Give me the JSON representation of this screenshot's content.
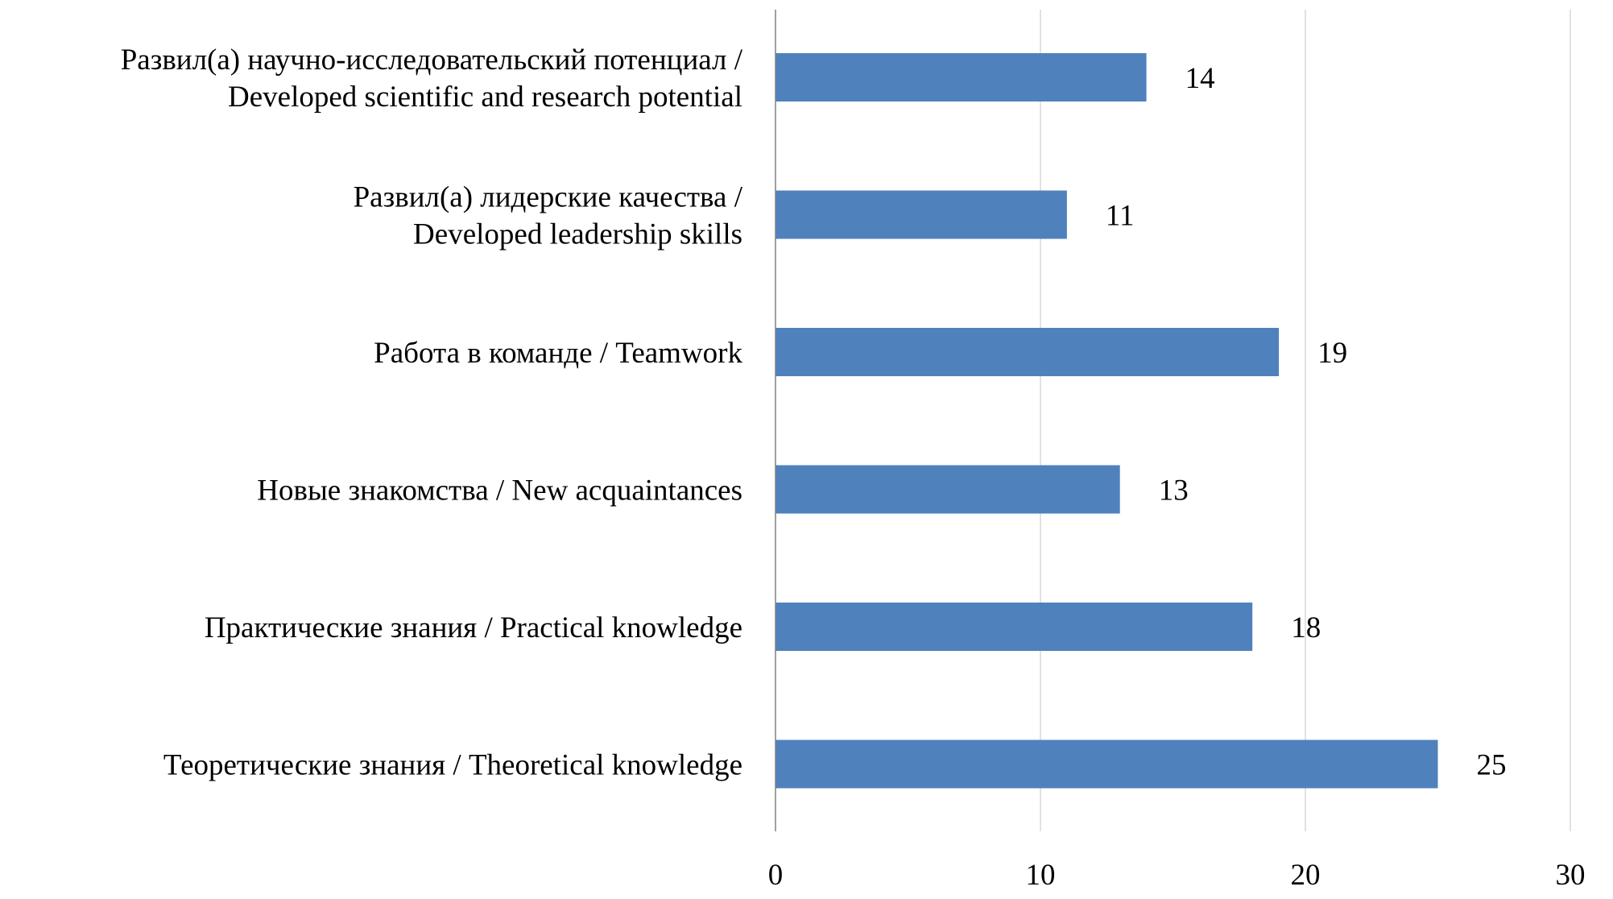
{
  "chart_data": {
    "type": "bar",
    "orientation": "horizontal",
    "title": "",
    "xlabel": "",
    "ylabel": "",
    "categories": [
      "Развил(а) научно-исследовательский потенциал / Developed scientific and research potential",
      "Развил(а) лидерские качества / Developed leadership skills",
      "Работа в команде / Teamwork",
      "Новые знакомства / New acquaintances",
      "Практические знания / Practical knowledge",
      "Теоретические знания / Theoretical knowledge"
    ],
    "category_lines": [
      [
        "Развил(а) научно-исследовательский потенциал /",
        "Developed scientific and research potential"
      ],
      [
        "Развил(а) лидерские качества /",
        "Developed leadership skills"
      ],
      [
        "Работа в команде / Teamwork"
      ],
      [
        "Новые знакомства / New acquaintances"
      ],
      [
        "Практические знания / Practical knowledge"
      ],
      [
        "Теоретические знания / Theoretical knowledge"
      ]
    ],
    "values": [
      14,
      11,
      19,
      13,
      18,
      25
    ],
    "data_labels": [
      "14",
      "11",
      "19",
      "13",
      "18",
      "25"
    ],
    "xlim": [
      0,
      30
    ],
    "x_ticks": [
      0,
      10,
      20,
      30
    ],
    "x_tick_labels": [
      "0",
      "10",
      "20",
      "30"
    ],
    "grid": true,
    "legend": "none",
    "colors": {
      "bar": "#4F81BD",
      "grid": "#D9D9D9",
      "axis": "#808080"
    }
  }
}
